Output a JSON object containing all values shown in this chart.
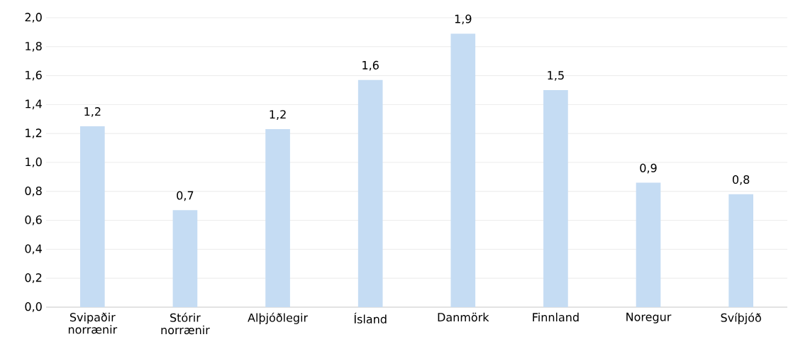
{
  "chart_data": {
    "type": "bar",
    "categories": [
      "Svipaðir norrænir",
      "Stórir norrænir",
      "Alþjóðlegir",
      "Ísland",
      "Danmörk",
      "Finnland",
      "Noregur",
      "Svíþjóð"
    ],
    "values": [
      1.25,
      0.67,
      1.23,
      1.57,
      1.89,
      1.5,
      0.86,
      0.78
    ],
    "value_labels": [
      "1,2",
      "0,7",
      "1,2",
      "1,6",
      "1,9",
      "1,5",
      "0,9",
      "0,8"
    ],
    "color": "#c5dcf3",
    "ylim": [
      0,
      2
    ],
    "yticks": [
      {
        "value": 0,
        "label": "0,0"
      },
      {
        "value": 0.2,
        "label": "0,2"
      },
      {
        "value": 0.4,
        "label": "0,4"
      },
      {
        "value": 0.6,
        "label": "0,6"
      },
      {
        "value": 0.8,
        "label": "0,8"
      },
      {
        "value": 1.0,
        "label": "1,0"
      },
      {
        "value": 1.2,
        "label": "1,2"
      },
      {
        "value": 1.4,
        "label": "1,4"
      },
      {
        "value": 1.6,
        "label": "1,6"
      },
      {
        "value": 1.8,
        "label": "1,8"
      },
      {
        "value": 2.0,
        "label": "2,0"
      }
    ],
    "grid": "y"
  }
}
